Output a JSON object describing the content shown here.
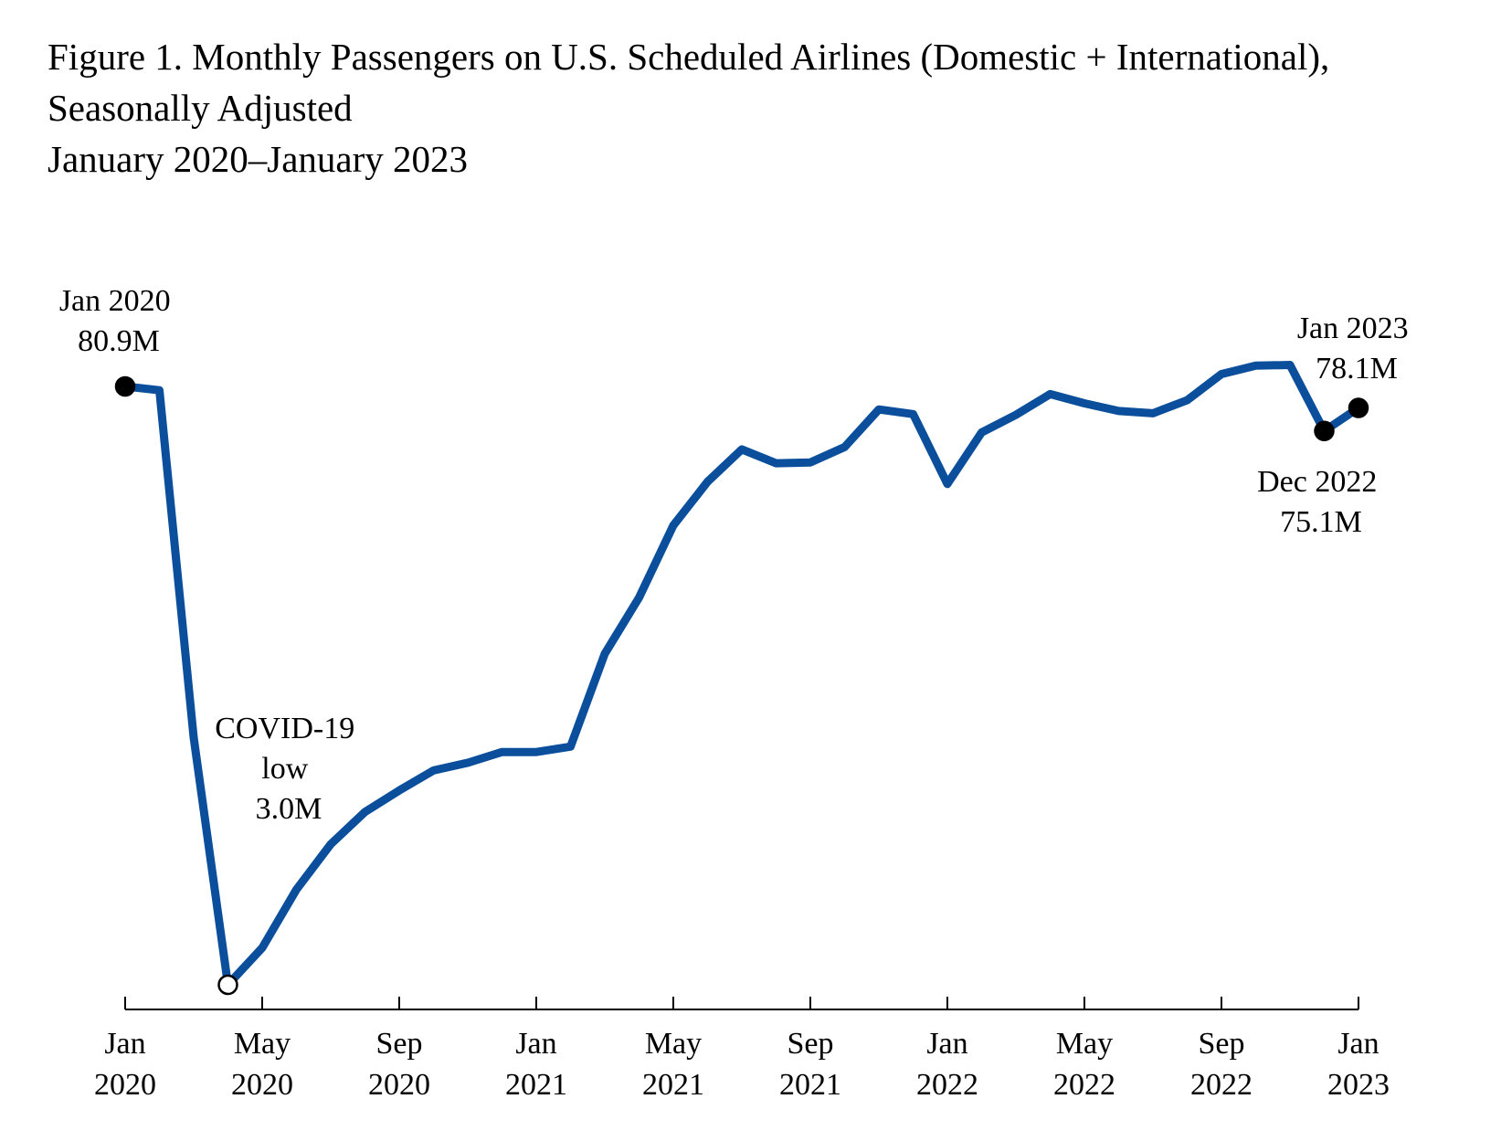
{
  "title": {
    "line1": "Figure 1. Monthly Passengers on U.S. Scheduled Airlines (Domestic + International),",
    "line2": "Seasonally Adjusted",
    "line3": "January 2020–January 2023"
  },
  "colors": {
    "series": "#0b4f9c",
    "axis": "#000000",
    "marker": "#000000",
    "marker_open": "#ffffff"
  },
  "chart_data": {
    "type": "line",
    "title": "Figure 1. Monthly Passengers on U.S. Scheduled Airlines (Domestic + International), Seasonally Adjusted, January 2020–January 2023",
    "xlabel": "",
    "ylabel": "",
    "units": "millions of passengers",
    "ylim": [
      0,
      85
    ],
    "x": [
      "Jan 2020",
      "Feb 2020",
      "Mar 2020",
      "Apr 2020",
      "May 2020",
      "Jun 2020",
      "Jul 2020",
      "Aug 2020",
      "Sep 2020",
      "Oct 2020",
      "Nov 2020",
      "Dec 2020",
      "Jan 2021",
      "Feb 2021",
      "Mar 2021",
      "Apr 2021",
      "May 2021",
      "Jun 2021",
      "Jul 2021",
      "Aug 2021",
      "Sep 2021",
      "Oct 2021",
      "Nov 2021",
      "Dec 2021",
      "Jan 2022",
      "Feb 2022",
      "Mar 2022",
      "Apr 2022",
      "May 2022",
      "Jun 2022",
      "Jul 2022",
      "Aug 2022",
      "Sep 2022",
      "Oct 2022",
      "Nov 2022",
      "Dec 2022",
      "Jan 2023"
    ],
    "series": [
      {
        "name": "Passengers (millions)",
        "values": [
          80.9,
          80.4,
          35.2,
          3.0,
          7.8,
          15.4,
          21.3,
          25.5,
          28.3,
          30.9,
          31.9,
          33.3,
          33.3,
          34.0,
          46.1,
          53.4,
          62.8,
          68.5,
          72.7,
          70.9,
          71.0,
          73.0,
          77.9,
          77.3,
          68.2,
          74.9,
          77.2,
          79.9,
          78.7,
          77.7,
          77.4,
          79.1,
          82.5,
          83.6,
          83.7,
          75.1,
          78.1
        ]
      }
    ],
    "x_ticks": [
      {
        "index": 0,
        "month": "Jan",
        "year": "2020"
      },
      {
        "index": 4,
        "month": "May",
        "year": "2020"
      },
      {
        "index": 8,
        "month": "Sep",
        "year": "2020"
      },
      {
        "index": 12,
        "month": "Jan",
        "year": "2021"
      },
      {
        "index": 16,
        "month": "May",
        "year": "2021"
      },
      {
        "index": 20,
        "month": "Sep",
        "year": "2021"
      },
      {
        "index": 24,
        "month": "Jan",
        "year": "2022"
      },
      {
        "index": 28,
        "month": "May",
        "year": "2022"
      },
      {
        "index": 32,
        "month": "Sep",
        "year": "2022"
      },
      {
        "index": 36,
        "month": "Jan",
        "year": "2023"
      }
    ],
    "markers": [
      {
        "index": 0,
        "style": "filled"
      },
      {
        "index": 3,
        "style": "open"
      },
      {
        "index": 35,
        "style": "filled"
      },
      {
        "index": 36,
        "style": "filled"
      }
    ],
    "annotations": [
      {
        "id": "start",
        "index": 0,
        "lines": [
          "Jan 2020",
          "80.9M"
        ]
      },
      {
        "id": "low",
        "index": 3,
        "lines": [
          "COVID-19",
          "low",
          "3.0M"
        ]
      },
      {
        "id": "dec22",
        "index": 35,
        "lines": [
          "Dec 2022",
          "75.1M"
        ]
      },
      {
        "id": "end",
        "index": 36,
        "lines": [
          "Jan 2023",
          "78.1M"
        ]
      }
    ],
    "grid": false,
    "legend": "none"
  }
}
